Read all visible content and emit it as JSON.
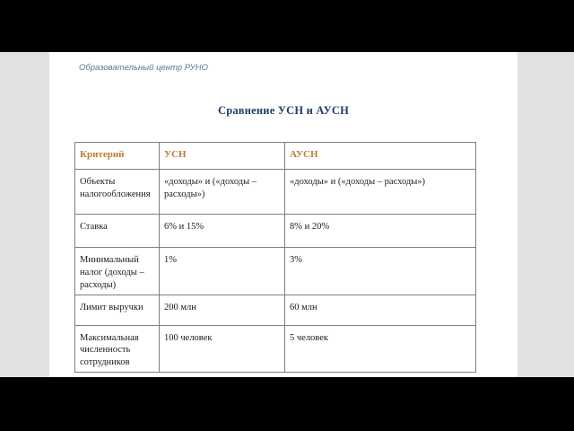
{
  "page": {
    "brand": "Образовательный центр РУНО",
    "title": "Сравнение УСН и АУСН"
  },
  "table": {
    "headers": [
      "Критерий",
      "УСН",
      "АУСН"
    ],
    "rows": [
      [
        "Объекты налогообложения",
        "«доходы» и («доходы – расходы»)",
        "«доходы» и («доходы – расходы»)"
      ],
      [
        "Ставка",
        "6% и 15%",
        "8% и 20%"
      ],
      [
        "Минимальный налог (доходы – расходы)",
        "1%",
        "3%"
      ],
      [
        "Лимит выручки",
        "200 млн",
        "60 млн"
      ],
      [
        "Максимальная численность сотрудников",
        "100 человек",
        "5 человек"
      ]
    ]
  },
  "colors": {
    "letterbox": "#000000",
    "desktop_band": "#e2e2e2",
    "page_background": "#ffffff",
    "brand_blue": "#4e7a9b",
    "title_navy": "#1f3c68",
    "table_header_orange": "#bf7b33",
    "table_border_gray": "#7f7f7f",
    "body_text": "#1c1c1c"
  }
}
